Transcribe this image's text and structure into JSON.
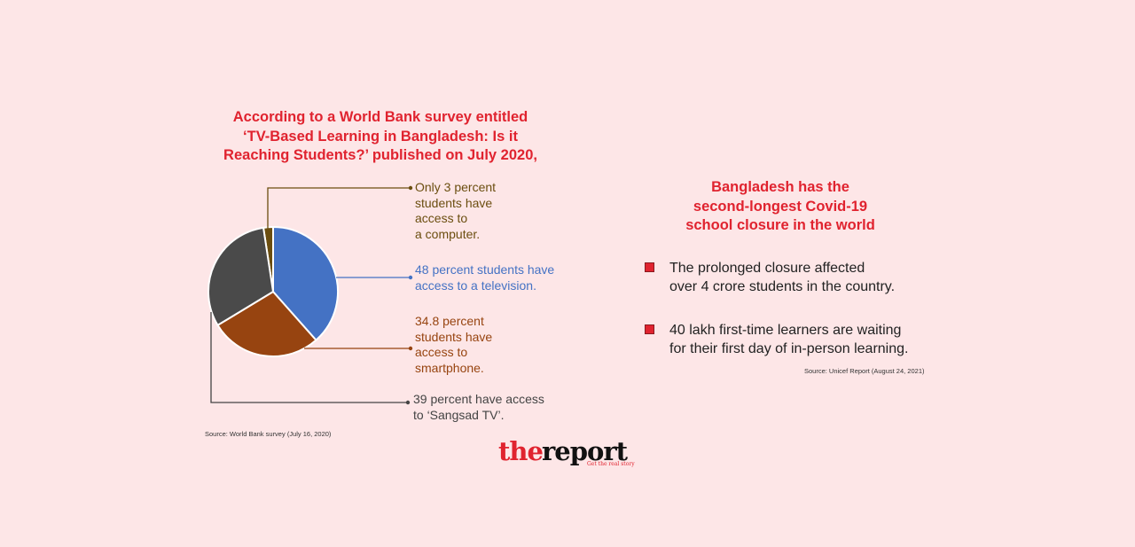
{
  "left_title": "According to a World Bank survey entitled\n‘TV-Based Learning in Bangladesh: Is it\nReaching Students?’ published on July 2020,",
  "chart_data": {
    "type": "pie",
    "slices": [
      {
        "label": "Only 3 percent\nstudents have\naccess to\na computer.",
        "value": 3,
        "color": "#6b4e10",
        "text_color": "#6b4e10"
      },
      {
        "label": "48 percent students have\naccess to a television.",
        "value": 48,
        "color": "#4472c4",
        "text_color": "#4472c4"
      },
      {
        "label": "34.8 percent\nstudents have\naccess to\nsmartphone.",
        "value": 34.8,
        "color": "#974410",
        "text_color": "#974410"
      },
      {
        "label": "39 percent have access\nto ‘Sangsad TV’.",
        "value": 39,
        "color": "#4a4a4a",
        "text_color": "#444444"
      }
    ]
  },
  "left_source": "Source: World Bank survey (July 16, 2020)",
  "right_title": "Bangladesh has the\nsecond-longest Covid-19\nschool closure in the world",
  "bullets": [
    "The prolonged closure affected\nover 4 crore students in the country.",
    "40 lakh first-time learners are waiting\nfor their first day of in-person learning."
  ],
  "right_source": "Source: Unicef Report (August 24, 2021)",
  "logo": {
    "the": "the",
    "report": "report",
    "tagline": "Get the real story"
  }
}
